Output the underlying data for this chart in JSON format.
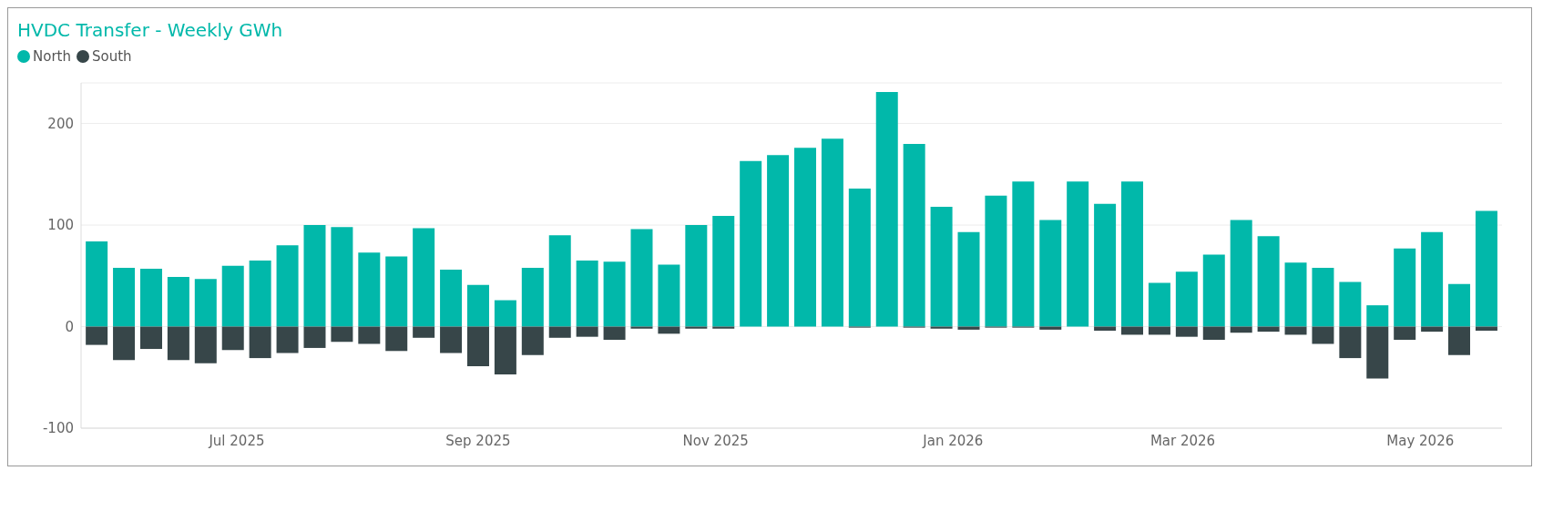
{
  "chart_data": {
    "type": "bar",
    "title": "HVDC Transfer - Weekly GWh",
    "stacked": true,
    "legend": "top left",
    "grid": "y",
    "x": [
      "2025-05-26",
      "2025-06-02",
      "2025-06-09",
      "2025-06-16",
      "2025-06-23",
      "2025-06-30",
      "2025-07-07",
      "2025-07-14",
      "2025-07-21",
      "2025-07-28",
      "2025-08-04",
      "2025-08-11",
      "2025-08-18",
      "2025-08-25",
      "2025-09-01",
      "2025-09-08",
      "2025-09-15",
      "2025-09-22",
      "2025-09-29",
      "2025-10-06",
      "2025-10-13",
      "2025-10-20",
      "2025-10-27",
      "2025-11-03",
      "2025-11-10",
      "2025-11-17",
      "2025-11-24",
      "2025-12-01",
      "2025-12-08",
      "2025-12-15",
      "2025-12-22",
      "2025-12-29",
      "2026-01-05",
      "2026-01-12",
      "2026-01-19",
      "2026-01-26",
      "2026-02-02",
      "2026-02-09",
      "2026-02-16",
      "2026-02-23",
      "2026-03-02",
      "2026-03-09",
      "2026-03-16",
      "2026-03-23",
      "2026-03-30",
      "2026-04-06",
      "2026-04-13",
      "2026-04-20",
      "2026-04-27",
      "2026-05-04",
      "2026-05-11",
      "2026-05-18"
    ],
    "series": [
      {
        "name": "North",
        "color": "#01b8aa",
        "values": [
          84,
          58,
          57,
          49,
          47,
          60,
          65,
          80,
          100,
          98,
          73,
          69,
          97,
          56,
          41,
          26,
          58,
          90,
          65,
          64,
          96,
          61,
          100,
          109,
          163,
          169,
          176,
          185,
          136,
          231,
          180,
          118,
          93,
          129,
          143,
          105,
          143,
          121,
          143,
          43,
          54,
          71,
          105,
          89,
          63,
          58,
          44,
          21,
          77,
          93,
          42,
          114
        ]
      },
      {
        "name": "South",
        "color": "#374649",
        "values": [
          -18,
          -33,
          -22,
          -33,
          -36,
          -23,
          -31,
          -26,
          -21,
          -15,
          -17,
          -24,
          -11,
          -26,
          -39,
          -47,
          -28,
          -11,
          -10,
          -13,
          -2,
          -7,
          -2,
          -2,
          0,
          0,
          0,
          0,
          -1,
          0,
          -1,
          -2,
          -3,
          -1,
          -1,
          -3,
          0,
          -4,
          -8,
          -8,
          -10,
          -13,
          -6,
          -5,
          -8,
          -17,
          -31,
          -51,
          -13,
          -5,
          -28,
          -4
        ]
      }
    ],
    "xlim": [
      "2025-05-22",
      "2026-05-22"
    ],
    "xticks": [
      {
        "value": "2025-07-01",
        "label": "Jul 2025"
      },
      {
        "value": "2025-09-01",
        "label": "Sep 2025"
      },
      {
        "value": "2025-11-01",
        "label": "Nov 2025"
      },
      {
        "value": "2026-01-01",
        "label": "Jan 2026"
      },
      {
        "value": "2026-03-01",
        "label": "Mar 2026"
      },
      {
        "value": "2026-05-01",
        "label": "May 2026"
      }
    ],
    "ylim": [
      -100,
      240
    ],
    "yticks": [
      -100,
      0,
      100,
      200
    ]
  }
}
